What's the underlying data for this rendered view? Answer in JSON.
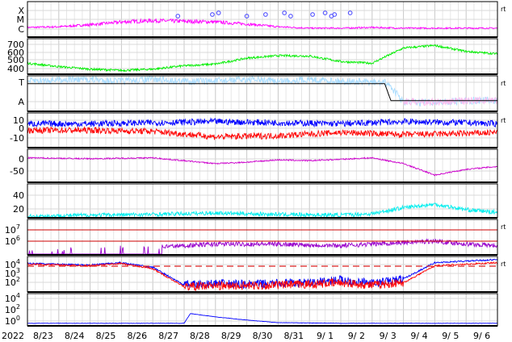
{
  "chart_data": {
    "type": "line",
    "title": "",
    "year_label": "2022",
    "x_tick_labels": [
      "8/23",
      "8/24",
      "8/25",
      "8/26",
      "8/27",
      "8/28",
      "8/29",
      "8/30",
      "8/31",
      "9/ 1",
      "9/ 2",
      "9/ 3",
      "9/ 4",
      "9/ 5",
      "9/ 6"
    ],
    "x_range_days": [
      0,
      15
    ],
    "grid": true,
    "panels": [
      {
        "id": "xray-class",
        "y_tick_labels": [
          "X",
          "M",
          "C"
        ],
        "side_label": "rt",
        "series": [
          {
            "color": "#ff00ff",
            "baseline": "C",
            "trend": [
              0.35,
              0.4,
              0.55,
              0.75,
              0.85,
              0.8,
              0.75,
              0.6,
              0.4,
              0.3,
              0.3,
              0.35,
              0.3,
              0.3,
              0.3
            ]
          },
          {
            "color": "#5050ff",
            "style": "markers",
            "x": [
              4.8,
              5.9,
              6.1,
              7.0,
              7.6,
              8.2,
              8.4,
              9.1,
              9.5,
              9.7,
              9.8,
              10.3
            ]
          }
        ]
      },
      {
        "id": "solar-wind-speed",
        "y_tick_labels": [
          "700",
          "600",
          "500",
          "400"
        ],
        "ylim": [
          340,
          760
        ],
        "series": [
          {
            "color": "#00ee00",
            "x": [
              0,
              1,
              2,
              3,
              4,
              5,
              6,
              7,
              8,
              9,
              10,
              11,
              12,
              13,
              14,
              15
            ],
            "values": [
              470,
              430,
              400,
              385,
              400,
              440,
              460,
              530,
              560,
              555,
              490,
              470,
              650,
              680,
              610,
              580
            ]
          }
        ]
      },
      {
        "id": "imf-sector",
        "y_tick_labels": [
          "T",
          "A"
        ],
        "side_label": "rt",
        "series": [
          {
            "color": "#aaddff",
            "x": [
              0,
              1,
              2,
              3,
              4,
              5,
              6,
              7,
              8,
              9,
              10,
              11.5,
              12,
              13,
              14,
              15
            ],
            "level": [
              0.85,
              0.9,
              0.9,
              0.85,
              0.9,
              0.85,
              0.85,
              0.9,
              0.85,
              0.9,
              0.85,
              0.8,
              0.25,
              0.25,
              0.3,
              0.3
            ]
          },
          {
            "color": "#ffbbee",
            "x": [
              12,
              13,
              14,
              15
            ],
            "level": [
              0.28,
              0.26,
              0.3,
              0.32
            ]
          },
          {
            "color": "#000000",
            "x": [
              0,
              11.4,
              11.6,
              15
            ],
            "level": [
              0.78,
              0.78,
              0.3,
              0.3
            ]
          }
        ]
      },
      {
        "id": "imf-bz",
        "y_tick_labels": [
          "10",
          "0",
          "-10"
        ],
        "ylim": [
          -16,
          16
        ],
        "side_label": "rt",
        "series": [
          {
            "color": "#0000ff",
            "x": [
              0,
              2,
              4,
              6,
              8,
              10,
              12,
              14,
              15
            ],
            "values": [
              6,
              6,
              7,
              8,
              7,
              6,
              8,
              7,
              6
            ]
          },
          {
            "color": "#ff0000",
            "x": [
              0,
              2,
              4,
              6,
              8,
              10,
              12,
              14,
              15
            ],
            "values": [
              0,
              0,
              -1,
              -6,
              -5,
              -2,
              -4,
              -3,
              -2
            ]
          }
        ]
      },
      {
        "id": "dst",
        "y_tick_labels": [
          "0",
          "-50"
        ],
        "ylim": [
          -90,
          25
        ],
        "series": [
          {
            "color": "#cc00cc",
            "x": [
              0,
              2,
              4,
              6,
              7,
              8,
              9,
              10,
              11,
              12,
              13,
              14,
              15
            ],
            "values": [
              -5,
              -8,
              -5,
              -25,
              -20,
              -12,
              -15,
              -10,
              -5,
              -25,
              -65,
              -45,
              -35
            ]
          }
        ]
      },
      {
        "id": "kp",
        "y_tick_labels": [
          "40",
          "20"
        ],
        "ylim": [
          0,
          50
        ],
        "series": [
          {
            "color": "#00eeee",
            "x": [
              0,
              2,
              4,
              6,
              8,
              10,
              11,
              12,
              13,
              14,
              15
            ],
            "values": [
              2,
              4,
              5,
              7,
              5,
              4,
              6,
              15,
              20,
              12,
              8
            ]
          }
        ]
      },
      {
        "id": "electron-flux",
        "y_tick_labels": [
          "10^7",
          "10^6"
        ],
        "side_label": "rt",
        "series": [
          {
            "color": "#9900cc",
            "x": [
              0,
              4,
              6,
              8,
              10,
              12,
              13,
              14,
              15
            ],
            "values": [
              5.2,
              5.4,
              5.6,
              5.6,
              5.5,
              5.7,
              5.8,
              5.6,
              5.5
            ]
          }
        ]
      },
      {
        "id": "proton-flux",
        "y_tick_labels": [
          "10^4",
          "10^3",
          "10^2"
        ],
        "side_label": "rt",
        "threshold_log": 4.0,
        "series": [
          {
            "color": "#0000ff",
            "x": [
              0,
              2,
              3,
              4,
              5,
              6,
              7,
              8,
              9,
              10,
              11,
              12,
              13,
              14,
              15
            ],
            "values": [
              3.5,
              3.3,
              3.6,
              3.0,
              0.7,
              0.9,
              0.8,
              0.9,
              1.0,
              1.4,
              0.9,
              1.5,
              3.6,
              3.8,
              4.0
            ]
          },
          {
            "color": "#ff0000",
            "x": [
              0,
              2,
              3,
              4,
              5,
              6,
              7,
              8,
              9,
              10,
              11,
              12,
              13,
              14,
              15
            ],
            "values": [
              3.4,
              3.2,
              3.5,
              2.8,
              0.5,
              0.6,
              0.6,
              0.7,
              0.8,
              1.0,
              0.7,
              1.0,
              3.2,
              3.4,
              3.6
            ]
          }
        ]
      },
      {
        "id": "high-energy-proton",
        "y_tick_labels": [
          "10^4",
          "10^2",
          "10^0"
        ],
        "series": [
          {
            "color": "#0000ff",
            "x": [
              0,
              5,
              5.2,
              6,
              7,
              8,
              10,
              15
            ],
            "values": [
              -0.1,
              -0.1,
              1.4,
              0.9,
              0.4,
              0.0,
              -0.1,
              -0.1
            ]
          }
        ]
      }
    ]
  }
}
